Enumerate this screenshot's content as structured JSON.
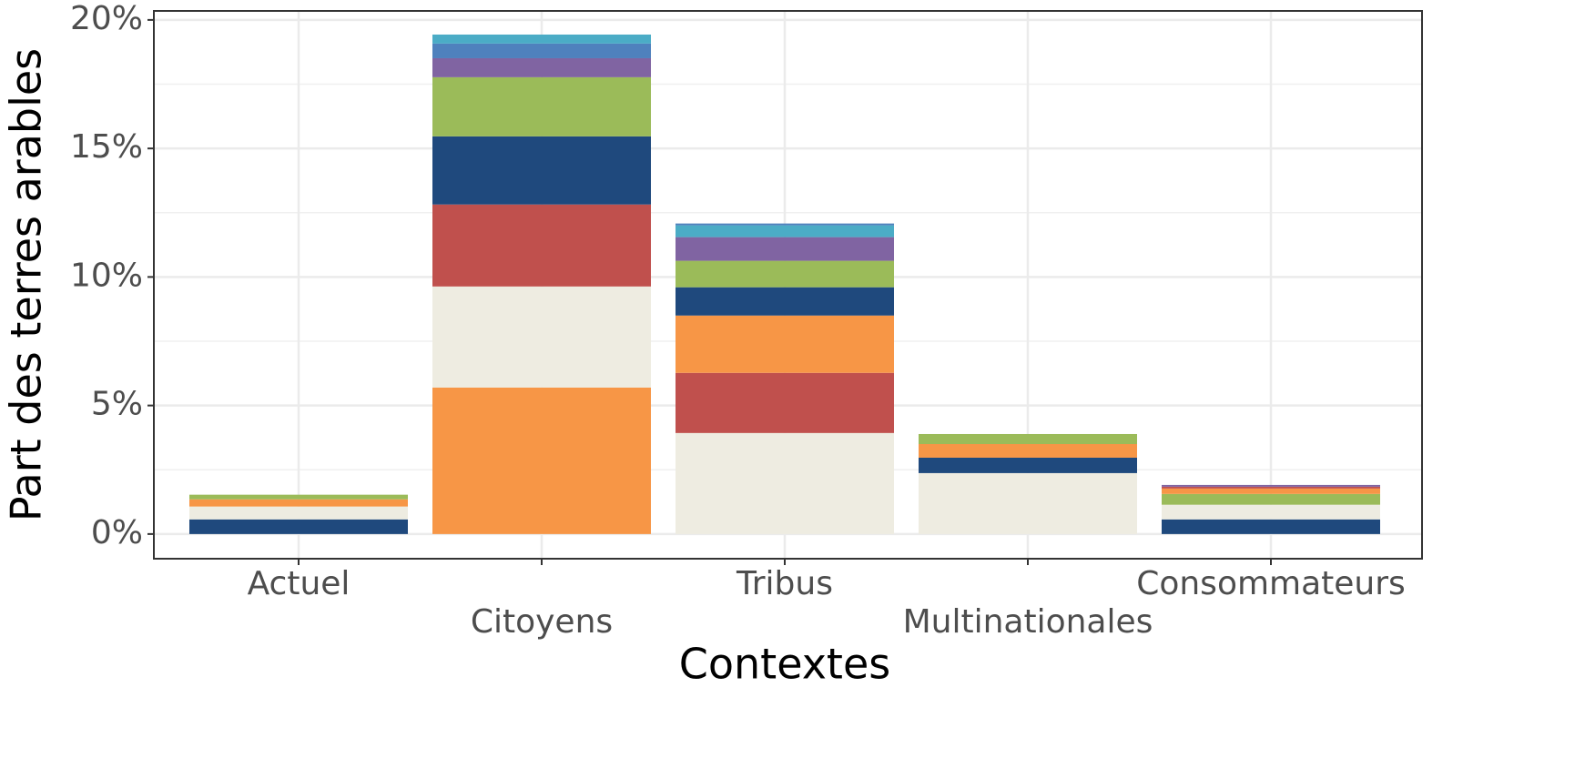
{
  "chart_data": {
    "type": "stacked-bar",
    "xlabel": "Contextes",
    "ylabel": "Part des terres arables",
    "categories": [
      "Actuel",
      "Citoyens",
      "Tribus",
      "Multinationales",
      "Consommateurs"
    ],
    "stacks": [
      [
        {
          "color": "#1f497d",
          "value": 0.57
        },
        {
          "color": "#eeece1",
          "value": 0.5
        },
        {
          "color": "#f79646",
          "value": 0.28
        },
        {
          "color": "#9bbb59",
          "value": 0.18
        }
      ],
      [
        {
          "color": "#f79646",
          "value": 5.7
        },
        {
          "color": "#eeece1",
          "value": 3.93
        },
        {
          "color": "#c0504d",
          "value": 3.19
        },
        {
          "color": "#1f497d",
          "value": 2.65
        },
        {
          "color": "#9bbb59",
          "value": 2.3
        },
        {
          "color": "#8064a2",
          "value": 0.74
        },
        {
          "color": "#4f81bd",
          "value": 0.57
        },
        {
          "color": "#4bacc6",
          "value": 0.35
        }
      ],
      [
        {
          "color": "#eeece1",
          "value": 3.93
        },
        {
          "color": "#c0504d",
          "value": 2.34
        },
        {
          "color": "#f79646",
          "value": 2.23
        },
        {
          "color": "#1f497d",
          "value": 1.1
        },
        {
          "color": "#9bbb59",
          "value": 1.03
        },
        {
          "color": "#8064a2",
          "value": 0.92
        },
        {
          "color": "#4bacc6",
          "value": 0.46
        },
        {
          "color": "#4f81bd",
          "value": 0.07
        }
      ],
      [
        {
          "color": "#eeece1",
          "value": 2.37
        },
        {
          "color": "#1f497d",
          "value": 0.6
        },
        {
          "color": "#f79646",
          "value": 0.53
        },
        {
          "color": "#9bbb59",
          "value": 0.39
        }
      ],
      [
        {
          "color": "#1f497d",
          "value": 0.57
        },
        {
          "color": "#eeece1",
          "value": 0.57
        },
        {
          "color": "#9bbb59",
          "value": 0.42
        },
        {
          "color": "#f79646",
          "value": 0.21
        },
        {
          "color": "#c0504d",
          "value": 0.07
        },
        {
          "color": "#8064a2",
          "value": 0.07
        }
      ]
    ],
    "ylim": [
      -0.96,
      20.35
    ],
    "yticks": [
      {
        "value": 0,
        "label": "0%"
      },
      {
        "value": 5,
        "label": "5%"
      },
      {
        "value": 10,
        "label": "10%"
      },
      {
        "value": 15,
        "label": "15%"
      },
      {
        "value": 20,
        "label": "20%"
      }
    ],
    "grid": true
  }
}
